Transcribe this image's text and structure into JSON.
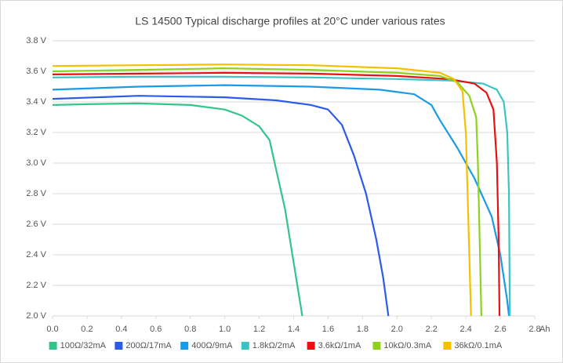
{
  "chart_data": {
    "type": "line",
    "title": "LS 14500 Typical discharge profiles at 20°C under various rates",
    "x_label": "Ah",
    "xlim": [
      0,
      2.8
    ],
    "xticks": [
      {
        "value": 0,
        "label": "0.0"
      },
      0.2,
      0.4,
      0.6,
      0.8,
      {
        "value": 1,
        "label": "1.0"
      },
      1.2,
      1.4,
      1.6,
      1.8,
      {
        "value": 2,
        "label": "2.0"
      },
      2.2,
      2.4,
      2.6,
      2.8
    ],
    "ylim": [
      2.0,
      3.8
    ],
    "yticks": [
      {
        "value": 2.0,
        "label": "2.0 V"
      },
      {
        "value": 2.2,
        "label": "2.2 V"
      },
      {
        "value": 2.4,
        "label": "2.4 V"
      },
      {
        "value": 2.6,
        "label": "2.6 V"
      },
      {
        "value": 2.8,
        "label": "2.8 V"
      },
      {
        "value": 3.0,
        "label": "3.0 V"
      },
      {
        "value": 3.2,
        "label": "3.2 V"
      },
      {
        "value": 3.4,
        "label": "3.4 V"
      },
      {
        "value": 3.6,
        "label": "3.6 V"
      },
      {
        "value": 3.8,
        "label": "3.8 V"
      }
    ],
    "grid": true,
    "legend": "bottom",
    "series": [
      {
        "name": "100Ω/32mA",
        "color": "#33c48a",
        "x": [
          0,
          0.2,
          0.5,
          0.8,
          1.0,
          1.1,
          1.2,
          1.26,
          1.3,
          1.35,
          1.4,
          1.45
        ],
        "values": [
          3.38,
          3.385,
          3.39,
          3.38,
          3.35,
          3.31,
          3.24,
          3.15,
          2.95,
          2.7,
          2.35,
          2.0
        ]
      },
      {
        "name": "200Ω/17mA",
        "color": "#2a5ce8",
        "x": [
          0,
          0.5,
          1.0,
          1.3,
          1.5,
          1.6,
          1.68,
          1.75,
          1.82,
          1.88,
          1.92,
          1.95
        ],
        "values": [
          3.42,
          3.44,
          3.43,
          3.41,
          3.38,
          3.35,
          3.25,
          3.05,
          2.8,
          2.5,
          2.25,
          2.0
        ]
      },
      {
        "name": "400Ω/9mA",
        "color": "#1a9be8",
        "x": [
          0,
          0.5,
          1.0,
          1.5,
          1.9,
          2.1,
          2.2,
          2.25,
          2.35,
          2.45,
          2.55,
          2.6,
          2.64,
          2.65
        ],
        "values": [
          3.48,
          3.5,
          3.51,
          3.5,
          3.48,
          3.45,
          3.38,
          3.28,
          3.1,
          2.9,
          2.65,
          2.4,
          2.1,
          2.0
        ]
      },
      {
        "name": "1.8kΩ/2mA",
        "color": "#3cc4c4",
        "x": [
          0,
          0.5,
          1.0,
          1.5,
          2.0,
          2.3,
          2.5,
          2.58,
          2.62,
          2.64,
          2.65,
          2.655
        ],
        "values": [
          3.56,
          3.565,
          3.565,
          3.56,
          3.55,
          3.54,
          3.52,
          3.48,
          3.4,
          3.2,
          2.8,
          2.0
        ]
      },
      {
        "name": "3.6kΩ/1mA",
        "color": "#e81010",
        "x": [
          0,
          0.5,
          1.0,
          1.5,
          2.0,
          2.3,
          2.45,
          2.52,
          2.56,
          2.58,
          2.59,
          2.595
        ],
        "values": [
          3.58,
          3.585,
          3.59,
          3.585,
          3.57,
          3.55,
          3.52,
          3.46,
          3.35,
          3.0,
          2.5,
          2.0
        ]
      },
      {
        "name": "10kΩ/0.3mA",
        "color": "#8cd21e",
        "x": [
          0,
          0.5,
          1.0,
          1.5,
          2.0,
          2.25,
          2.35,
          2.42,
          2.46,
          2.47,
          2.48,
          2.49
        ],
        "values": [
          3.6,
          3.61,
          3.62,
          3.61,
          3.59,
          3.57,
          3.53,
          3.44,
          3.3,
          3.0,
          2.5,
          2.0
        ]
      },
      {
        "name": "36kΩ/0.1mA",
        "color": "#f5c000",
        "x": [
          0,
          0.5,
          1.0,
          1.5,
          2.0,
          2.25,
          2.33,
          2.38,
          2.4,
          2.41,
          2.42,
          2.43
        ],
        "values": [
          3.635,
          3.64,
          3.645,
          3.64,
          3.62,
          3.59,
          3.55,
          3.47,
          3.2,
          2.8,
          2.4,
          2.0
        ]
      }
    ]
  }
}
